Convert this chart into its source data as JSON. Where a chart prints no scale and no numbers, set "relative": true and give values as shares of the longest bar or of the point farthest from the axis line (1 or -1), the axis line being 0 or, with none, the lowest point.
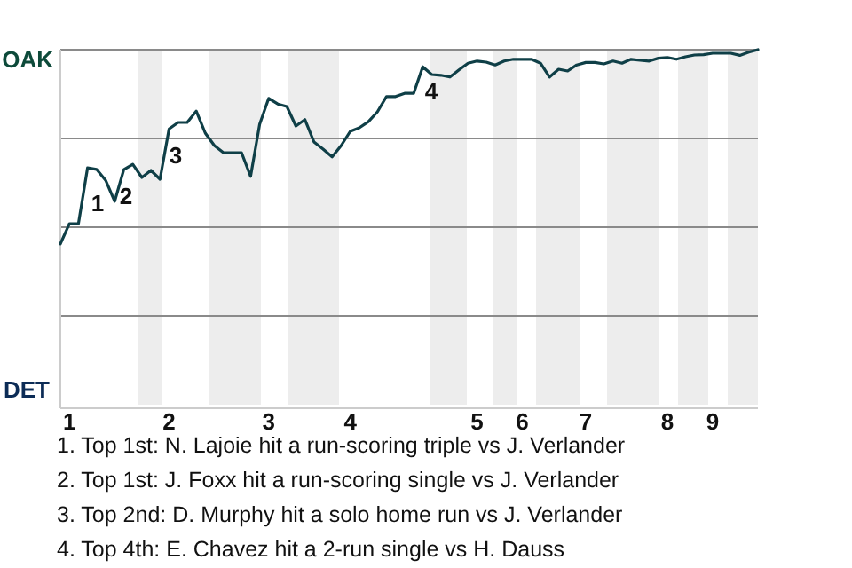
{
  "chart_data": {
    "type": "line",
    "relative": true,
    "categories": [
      null,
      "1",
      null,
      null,
      null,
      null,
      null,
      null,
      null,
      null,
      null,
      null,
      "2",
      null,
      null,
      null,
      null,
      null,
      null,
      null,
      null,
      null,
      null,
      "3",
      null,
      null,
      null,
      null,
      null,
      null,
      null,
      null,
      "4",
      null,
      null,
      null,
      null,
      null,
      null,
      null,
      null,
      null,
      null,
      null,
      null,
      null,
      "5",
      null,
      null,
      null,
      null,
      "6",
      null,
      null,
      null,
      null,
      null,
      null,
      "7",
      null,
      null,
      null,
      null,
      null,
      null,
      null,
      null,
      "8",
      null,
      null,
      null,
      null,
      "9",
      null,
      null,
      null,
      null,
      null
    ],
    "series": [
      {
        "color": "#0f3f47",
        "values": [
          0.453,
          0.51,
          0.51,
          0.667,
          0.663,
          0.632,
          0.573,
          0.662,
          0.677,
          0.64,
          0.66,
          0.635,
          0.777,
          0.795,
          0.795,
          0.827,
          0.765,
          0.73,
          0.71,
          0.71,
          0.71,
          0.643,
          0.79,
          0.863,
          0.847,
          0.84,
          0.785,
          0.803,
          0.74,
          0.72,
          0.698,
          0.73,
          0.77,
          0.78,
          0.797,
          0.825,
          0.868,
          0.868,
          0.877,
          0.877,
          0.952,
          0.93,
          0.928,
          0.923,
          0.943,
          0.962,
          0.968,
          0.965,
          0.957,
          0.968,
          0.973,
          0.973,
          0.973,
          0.962,
          0.923,
          0.945,
          0.94,
          0.957,
          0.964,
          0.964,
          0.96,
          0.968,
          0.962,
          0.973,
          0.97,
          0.968,
          0.976,
          0.978,
          0.973,
          0.98,
          0.985,
          0.986,
          0.99,
          0.99,
          0.99,
          0.984,
          0.993,
          1
        ]
      }
    ],
    "grid": "y",
    "annotations": [
      "OAK",
      "DET",
      "1",
      "2",
      "3",
      "4",
      "1. Top 1st: N. Lajoie hit a run-scoring triple vs J. Verlander",
      "2. Top 1st: J. Foxx hit a run-scoring single vs J. Verlander",
      "3. Top 2nd: D. Murphy hit a solo home run vs J. Verlander",
      "4. Top 4th: E. Chavez hit a 2-run single vs H. Dauss"
    ]
  }
}
